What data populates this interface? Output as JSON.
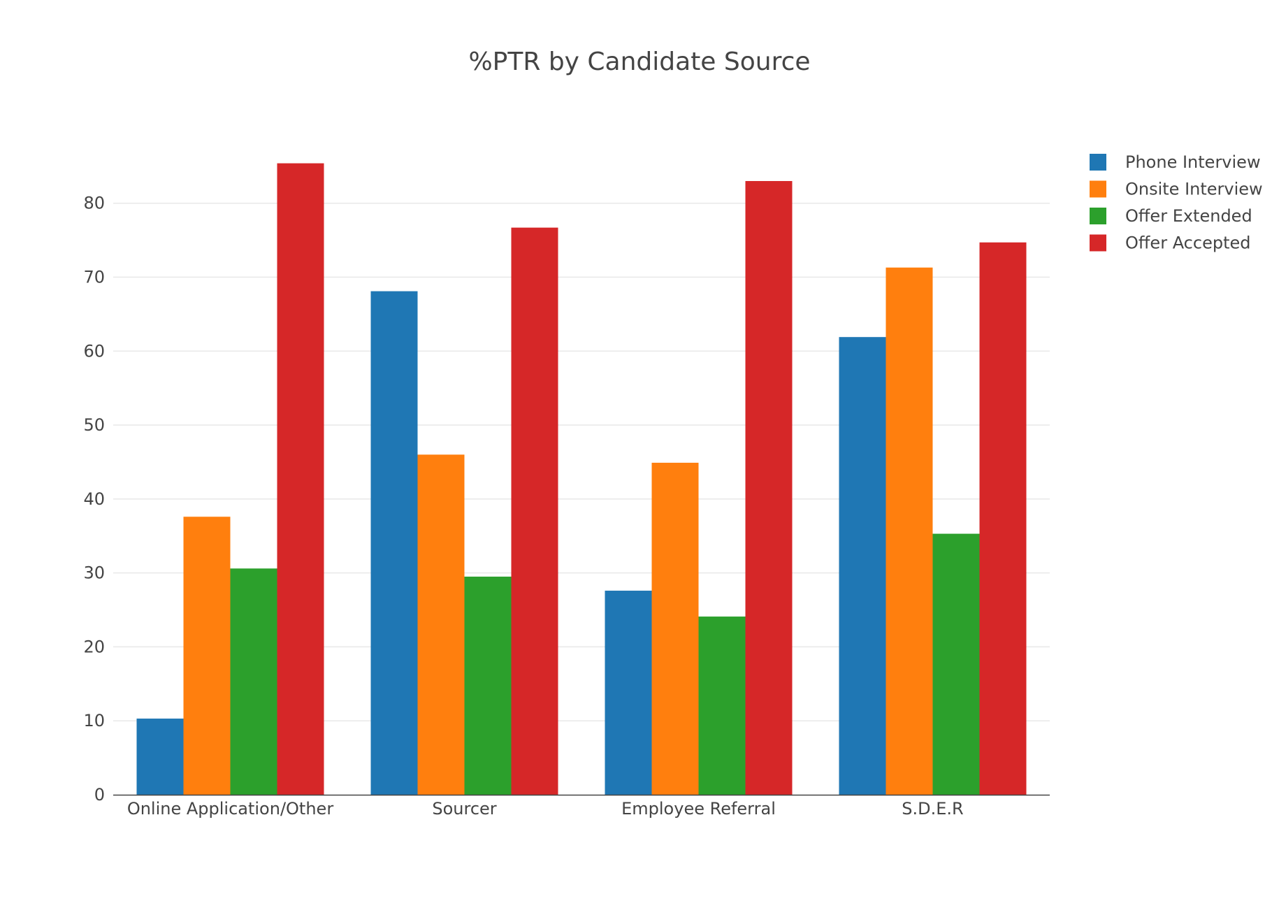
{
  "chart_data": {
    "type": "bar",
    "title": "%PTR by Candidate Source",
    "xlabel": "",
    "ylabel": "",
    "categories": [
      "Online Application/Other",
      "Sourcer",
      "Employee Referral",
      "S.D.E.R"
    ],
    "series": [
      {
        "name": "Phone Interview",
        "color": "#1f77b4",
        "values": [
          10.3,
          68.1,
          27.6,
          61.9
        ]
      },
      {
        "name": "Onsite Interview",
        "color": "#ff7f0e",
        "values": [
          37.6,
          46.0,
          44.9,
          71.3
        ]
      },
      {
        "name": "Offer Extended",
        "color": "#2ca02c",
        "values": [
          30.6,
          29.5,
          24.1,
          35.3
        ]
      },
      {
        "name": "Offer Accepted",
        "color": "#d62728",
        "values": [
          85.4,
          76.7,
          83.0,
          74.7
        ]
      }
    ],
    "ylim": [
      0,
      89.9
    ],
    "yticks": [
      0,
      10,
      20,
      30,
      40,
      50,
      60,
      70,
      80
    ],
    "grid": true,
    "legend_position": "top-right",
    "barmode": "grouped"
  }
}
